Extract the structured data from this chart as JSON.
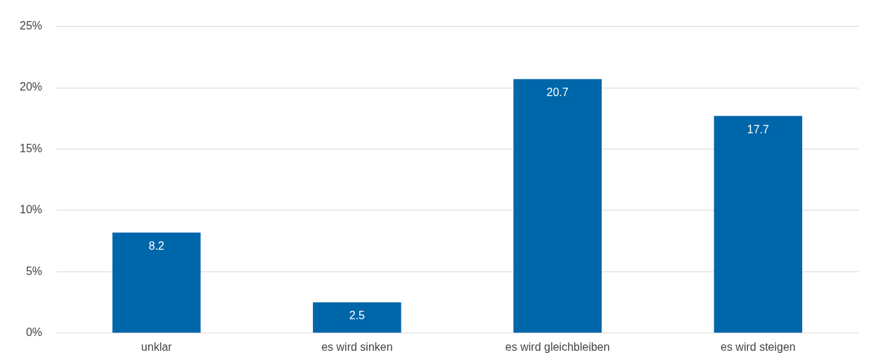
{
  "chart_data": {
    "type": "bar",
    "categories": [
      "unklar",
      "es wird sinken",
      "es wird gleichbleiben",
      "es wird steigen"
    ],
    "values": [
      8.2,
      2.5,
      20.7,
      17.7
    ],
    "color": "#0066aa",
    "ylim": [
      0,
      25
    ],
    "yticks": [
      {
        "value": 0,
        "label": "0%"
      },
      {
        "value": 5,
        "label": "5%"
      },
      {
        "value": 10,
        "label": "10%"
      },
      {
        "value": 15,
        "label": "15%"
      },
      {
        "value": 20,
        "label": "20%"
      },
      {
        "value": 25,
        "label": "25%"
      }
    ],
    "grid": "y",
    "legend": false,
    "data_labels": true
  }
}
